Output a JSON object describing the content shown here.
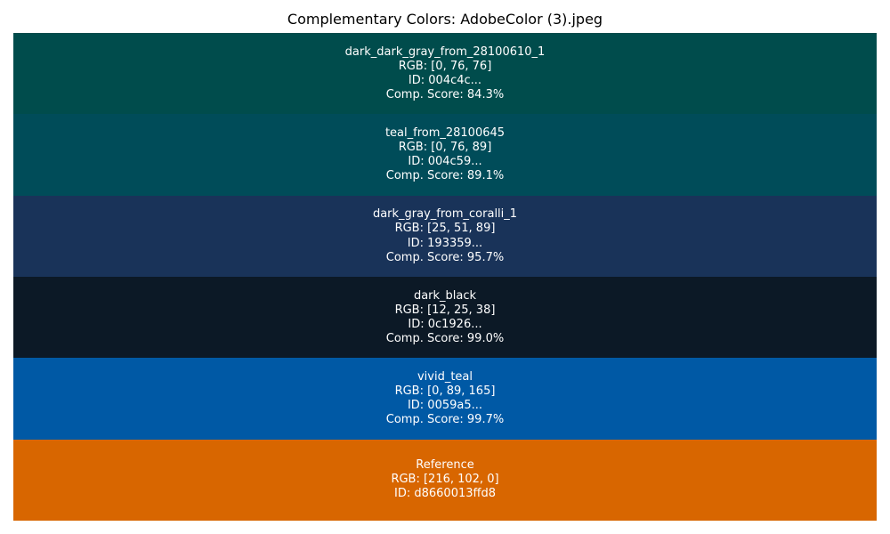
{
  "chart_data": {
    "type": "table",
    "title": "Complementary Colors: AdobeColor (3).jpeg",
    "swatches": [
      {
        "name": "dark_dark_gray_from_28100610_1",
        "rgb_text": "RGB: [0, 76, 76]",
        "id_text": "ID: 004c4c...",
        "score_text": "Comp. Score: 84.3%",
        "rgb": [
          0,
          76,
          76
        ],
        "score": 84.3,
        "color": "#004c4c"
      },
      {
        "name": "teal_from_28100645",
        "rgb_text": "RGB: [0, 76, 89]",
        "id_text": "ID: 004c59...",
        "score_text": "Comp. Score: 89.1%",
        "rgb": [
          0,
          76,
          89
        ],
        "score": 89.1,
        "color": "#004c59"
      },
      {
        "name": "dark_gray_from_coralli_1",
        "rgb_text": "RGB: [25, 51, 89]",
        "id_text": "ID: 193359...",
        "score_text": "Comp. Score: 95.7%",
        "rgb": [
          25,
          51,
          89
        ],
        "score": 95.7,
        "color": "#193359"
      },
      {
        "name": "dark_black",
        "rgb_text": "RGB: [12, 25, 38]",
        "id_text": "ID: 0c1926...",
        "score_text": "Comp. Score: 99.0%",
        "rgb": [
          12,
          25,
          38
        ],
        "score": 99.0,
        "color": "#0c1926"
      },
      {
        "name": "vivid_teal",
        "rgb_text": "RGB: [0, 89, 165]",
        "id_text": "ID: 0059a5...",
        "score_text": "Comp. Score: 99.7%",
        "rgb": [
          0,
          89,
          165
        ],
        "score": 99.7,
        "color": "#0059a5"
      },
      {
        "name": "Reference",
        "rgb_text": "RGB: [216, 102, 0]",
        "id_text": "ID: d8660013ffd8",
        "score_text": "",
        "rgb": [
          216,
          102,
          0
        ],
        "score": null,
        "color": "#d86600"
      }
    ]
  }
}
